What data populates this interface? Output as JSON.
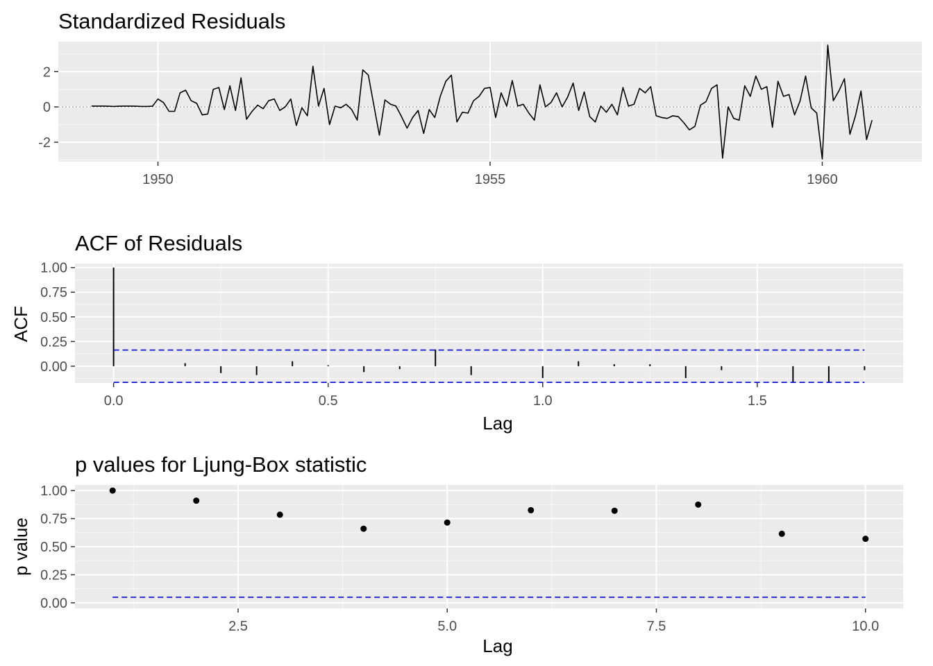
{
  "colors": {
    "panel_bg": "#ebebeb",
    "grid_major": "#ffffff",
    "grid_minor": "#f7f7f7",
    "line": "#000000",
    "bound": "#0000cd",
    "zero_ref": "#999999",
    "tick_text": "#4d4d4d"
  },
  "chart_data": [
    {
      "type": "line",
      "title": "Standardized Residuals",
      "xlabel": "",
      "ylabel": "",
      "xlim": [
        1948.5,
        1961.5
      ],
      "ylim": [
        -3.1,
        3.7
      ],
      "xticks": [
        1950,
        1955,
        1960
      ],
      "xtick_labels": [
        "1950",
        "1955",
        "1960"
      ],
      "yticks": [
        -2,
        0,
        2
      ],
      "ytick_labels": [
        "-2",
        "0",
        "2"
      ],
      "reference_line": {
        "y": 0,
        "style": "dotted"
      },
      "grid": true,
      "x_start": 1949.0,
      "x_step": 0.0833333,
      "values": [
        0.05,
        0.05,
        0.05,
        0.04,
        0.03,
        0.04,
        0.05,
        0.05,
        0.04,
        0.03,
        0.03,
        0.04,
        0.45,
        0.25,
        -0.25,
        -0.25,
        0.8,
        0.95,
        0.35,
        0.2,
        -0.45,
        -0.4,
        1.0,
        1.1,
        -0.15,
        1.2,
        -0.2,
        1.65,
        -0.7,
        -0.25,
        0.1,
        -0.1,
        0.35,
        0.45,
        -0.2,
        0.0,
        0.45,
        -1.05,
        -0.05,
        -0.5,
        2.3,
        0.05,
        1.05,
        -1.0,
        0.05,
        -0.05,
        0.15,
        -0.15,
        -0.75,
        2.1,
        1.8,
        0.1,
        -1.6,
        0.4,
        0.15,
        0.05,
        -0.55,
        -1.2,
        -0.6,
        -0.2,
        -1.5,
        -0.15,
        -0.6,
        0.6,
        1.45,
        1.8,
        -0.85,
        -0.3,
        -0.35,
        0.35,
        0.6,
        1.05,
        1.1,
        -0.6,
        0.8,
        0.05,
        1.5,
        0.05,
        0.15,
        -0.35,
        -0.75,
        1.25,
        0.0,
        0.25,
        0.8,
        0.0,
        0.55,
        1.35,
        -0.2,
        0.85,
        -0.55,
        -0.85,
        0.05,
        -0.3,
        0.15,
        -0.45,
        1.1,
        0.05,
        0.15,
        1.05,
        0.8,
        1.15,
        -0.5,
        -0.6,
        -0.65,
        -0.5,
        -0.55,
        -0.9,
        -1.3,
        -1.1,
        0.1,
        0.3,
        1.05,
        1.25,
        -2.9,
        0.0,
        -0.65,
        -0.75,
        1.2,
        0.6,
        1.75,
        1.0,
        1.15,
        -1.15,
        1.45,
        0.6,
        0.7,
        -0.45,
        0.35,
        1.75,
        -0.05,
        -0.35,
        -2.95,
        3.5,
        0.35,
        0.9,
        1.6,
        -1.55,
        -0.5,
        0.9,
        -1.85,
        -0.75
      ]
    },
    {
      "type": "bar",
      "title": "ACF of Residuals",
      "xlabel": "Lag",
      "ylabel": "ACF",
      "xlim": [
        -0.09,
        1.84
      ],
      "ylim": [
        -0.17,
        1.04
      ],
      "xticks": [
        0.0,
        0.5,
        1.0,
        1.5
      ],
      "xtick_labels": [
        "0.0",
        "0.5",
        "1.0",
        "1.5"
      ],
      "yticks": [
        0.0,
        0.25,
        0.5,
        0.75,
        1.0
      ],
      "ytick_labels": [
        "0.00",
        "0.25",
        "0.50",
        "0.75",
        "1.00"
      ],
      "confidence_bounds": [
        0.164,
        -0.164
      ],
      "grid": true,
      "x": [
        0.0,
        0.0833,
        0.1667,
        0.25,
        0.3333,
        0.4167,
        0.5,
        0.5833,
        0.6667,
        0.75,
        0.8333,
        0.9167,
        1.0,
        1.0833,
        1.1667,
        1.25,
        1.3333,
        1.4167,
        1.5,
        1.5833,
        1.6667,
        1.75
      ],
      "values": [
        1.0,
        0.0,
        0.03,
        -0.07,
        -0.09,
        0.05,
        0.01,
        -0.06,
        -0.03,
        0.17,
        -0.09,
        0.0,
        -0.12,
        0.05,
        0.02,
        0.02,
        -0.12,
        -0.04,
        0.0,
        -0.16,
        -0.16,
        -0.04
      ]
    },
    {
      "type": "scatter",
      "title": "p values for Ljung-Box statistic",
      "xlabel": "Lag",
      "ylabel": "p value",
      "xlim": [
        0.55,
        10.45
      ],
      "ylim": [
        -0.05,
        1.05
      ],
      "xticks": [
        2.5,
        5.0,
        7.5,
        10.0
      ],
      "xtick_labels": [
        "2.5",
        "5.0",
        "7.5",
        "10.0"
      ],
      "yticks": [
        0.0,
        0.25,
        0.5,
        0.75,
        1.0
      ],
      "ytick_labels": [
        "0.00",
        "0.25",
        "0.50",
        "0.75",
        "1.00"
      ],
      "reference_line": {
        "y": 0.05,
        "style": "dashed"
      },
      "grid": true,
      "x": [
        1,
        2,
        3,
        4,
        5,
        6,
        7,
        8,
        9,
        10
      ],
      "values": [
        1.0,
        0.91,
        0.785,
        0.66,
        0.715,
        0.825,
        0.82,
        0.875,
        0.615,
        0.57
      ]
    }
  ]
}
